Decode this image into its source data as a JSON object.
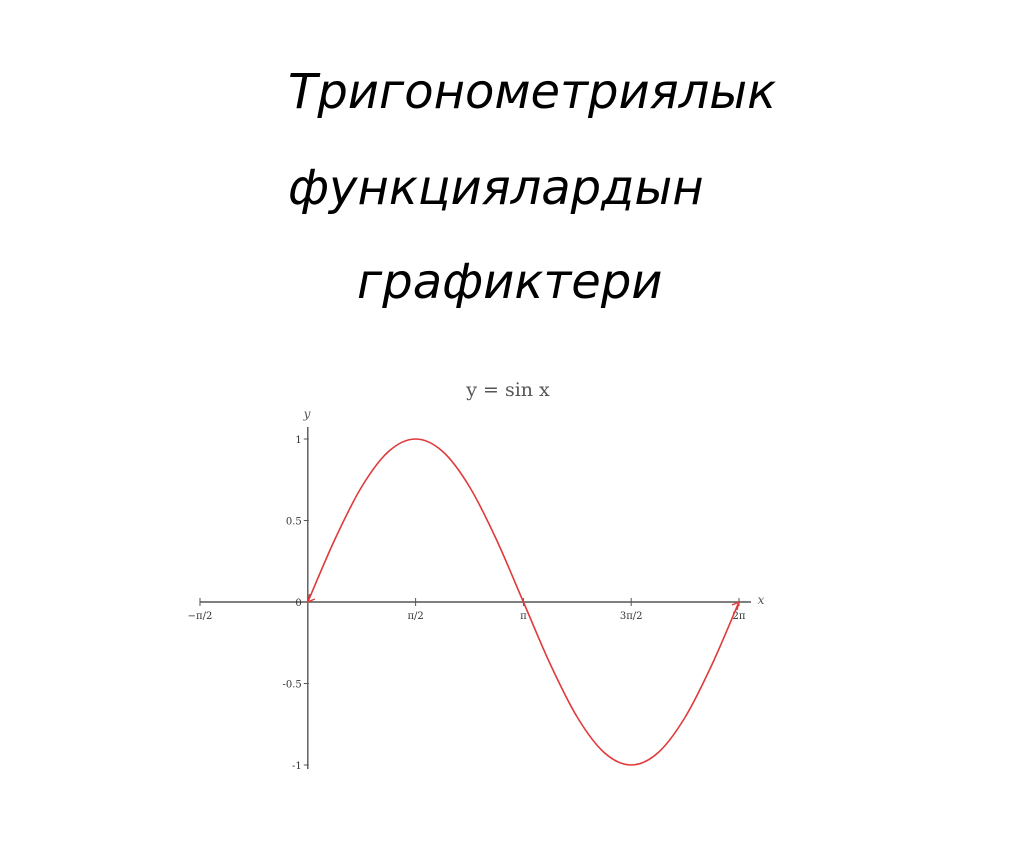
{
  "slide": {
    "title_lines": [
      "Тригонометриялык",
      "функциялардын",
      "графиктери"
    ]
  },
  "chart_data": {
    "type": "line",
    "title": "y = sin x",
    "xlabel": "x",
    "ylabel": "y",
    "xlim": [
      -1.5708,
      6.2832
    ],
    "ylim": [
      -1,
      1
    ],
    "x_ticks": [
      {
        "value": -1.5708,
        "label": "−π/2"
      },
      {
        "value": 1.5708,
        "label": "π/2"
      },
      {
        "value": 3.1416,
        "label": "π"
      },
      {
        "value": 4.7124,
        "label": "3π/2"
      },
      {
        "value": 6.2832,
        "label": "2π"
      }
    ],
    "y_ticks": [
      {
        "value": 1,
        "label": "1"
      },
      {
        "value": 0.5,
        "label": "0.5"
      },
      {
        "value": 0,
        "label": "0"
      },
      {
        "value": -0.5,
        "label": "-0.5"
      },
      {
        "value": -1,
        "label": "-1"
      }
    ],
    "series": [
      {
        "color": "#e03a3a",
        "x": [
          0,
          0.3927,
          0.7854,
          1.1781,
          1.5708,
          1.9635,
          2.3562,
          2.7489,
          3.1416,
          3.5343,
          3.927,
          4.3197,
          4.7124,
          5.1051,
          5.4978,
          5.8905,
          6.2832
        ],
        "y": [
          0,
          0.3827,
          0.7071,
          0.9239,
          1,
          0.9239,
          0.7071,
          0.3827,
          0,
          -0.3827,
          -0.7071,
          -0.9239,
          -1,
          -0.9239,
          -0.7071,
          -0.3827,
          0
        ]
      }
    ],
    "grid": false,
    "axis_color": "#555555"
  }
}
